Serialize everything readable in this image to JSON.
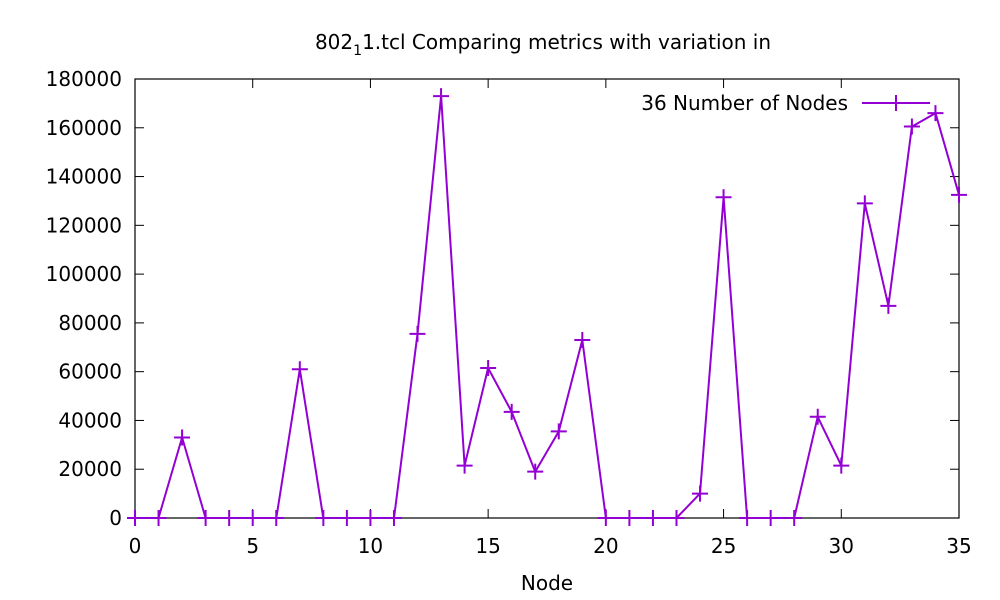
{
  "chart_data": {
    "type": "line",
    "title": {
      "main": "802",
      "sub": "1",
      "rest": "1.tcl Comparing metrics with variation in"
    },
    "xlabel": "Node",
    "ylabel": "",
    "xlim": [
      0,
      35
    ],
    "ylim": [
      0,
      180000
    ],
    "xticks": [
      0,
      5,
      10,
      15,
      20,
      25,
      30,
      35
    ],
    "yticks": [
      0,
      20000,
      40000,
      60000,
      80000,
      100000,
      120000,
      140000,
      160000,
      180000
    ],
    "grid": false,
    "legend_position": "top-right",
    "series": [
      {
        "name": "36 Number of Nodes",
        "color": "#9400d3",
        "marker": "plus",
        "x": [
          0,
          1,
          2,
          3,
          4,
          5,
          6,
          7,
          8,
          9,
          10,
          11,
          12,
          13,
          14,
          15,
          16,
          17,
          18,
          19,
          20,
          21,
          22,
          23,
          24,
          25,
          26,
          27,
          28,
          29,
          30,
          31,
          32,
          33,
          34,
          35
        ],
        "values": [
          0,
          0,
          33000,
          0,
          0,
          0,
          0,
          61000,
          0,
          0,
          0,
          0,
          75500,
          173000,
          21500,
          61500,
          43500,
          19000,
          35500,
          73000,
          0,
          0,
          0,
          0,
          10000,
          131500,
          0,
          0,
          0,
          41500,
          21500,
          129000,
          87000,
          160500,
          166000,
          132500
        ]
      }
    ]
  }
}
